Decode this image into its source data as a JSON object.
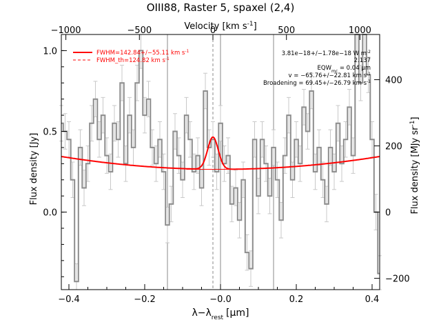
{
  "chart_data": {
    "type": "line",
    "title": "OIII88, Raster 5, spaxel (2,4)",
    "xlabel": "λ−λ",
    "xlabel_sub": "rest",
    "xlabel_unit": "[μm]",
    "ylabel": "Flux density [Jy]",
    "top_label": "Velocity [km s",
    "top_label_sup": "-1",
    "top_label_end": "]",
    "right_label": "Flux density [MJy sr",
    "right_label_sup": "-1",
    "right_label_end": "]",
    "xlim": [
      -0.42,
      0.42
    ],
    "ylim": [
      -0.48,
      1.1
    ],
    "xticks": [
      -0.4,
      -0.2,
      0.0,
      0.2,
      0.4
    ],
    "xtick_labels": [
      "−0.4",
      "−0.2",
      "−0.0",
      "0.2",
      "0.4"
    ],
    "yticks": [
      0.0,
      0.5,
      1.0
    ],
    "ytick_labels": [
      "0.0",
      "0.5",
      "1.0"
    ],
    "top_ticks": [
      -1000,
      -500,
      0,
      500,
      1000
    ],
    "top_tick_labels": [
      "−1000",
      "−500",
      "0",
      "500",
      "1000"
    ],
    "right_ticks": [
      -200,
      0,
      200,
      400
    ],
    "right_tick_labels": [
      "−200",
      "0",
      "200",
      "400"
    ],
    "vlines_solid": [
      -0.14,
      0.0,
      0.14
    ],
    "vline_dashed": -0.02,
    "legend": [
      {
        "label": "FWHM=142.84+/−55.11 km s",
        "sup": "-1",
        "style": "solid"
      },
      {
        "label": "FWHM_th=124.82 km s",
        "sup": "-1",
        "style": "dashed"
      }
    ],
    "annotations": [
      {
        "text": "3.81e−18+/−1.78e−18 W m",
        "sup": "-2"
      },
      {
        "text": "2.137"
      },
      {
        "text": "EQW",
        "sub": "mc",
        "text2": " = 0.04 μm"
      },
      {
        "text": "v = −65.76+/−22.81 km s",
        "sup": "-1"
      },
      {
        "text": "Broadening = 69.45+/−26.79 km s",
        "sup": "-1"
      }
    ],
    "fit": {
      "continuum_a": 0.265,
      "continuum_b": 0.45,
      "gauss_center": -0.02,
      "gauss_amp": 0.2,
      "gauss_sigma": 0.014
    },
    "series": [
      {
        "x": [
          -0.42,
          -0.41,
          -0.4,
          -0.39,
          -0.38,
          -0.37,
          -0.36,
          -0.35,
          -0.34,
          -0.33,
          -0.32,
          -0.31,
          -0.3,
          -0.29,
          -0.28,
          -0.27,
          -0.26,
          -0.25,
          -0.24,
          -0.23,
          -0.22,
          -0.21,
          -0.2,
          -0.19,
          -0.18,
          -0.17,
          -0.16,
          -0.15,
          -0.14,
          -0.13,
          -0.12,
          -0.11,
          -0.1,
          -0.09,
          -0.08,
          -0.07,
          -0.06,
          -0.05,
          -0.04,
          -0.03,
          -0.02,
          -0.01,
          0.0,
          0.01,
          0.02,
          0.03,
          0.04,
          0.05,
          0.06,
          0.07,
          0.08,
          0.09,
          0.1,
          0.11,
          0.12,
          0.13,
          0.14,
          0.15,
          0.16,
          0.17,
          0.18,
          0.19,
          0.2,
          0.21,
          0.22,
          0.23,
          0.24,
          0.25,
          0.26,
          0.27,
          0.28,
          0.29,
          0.3,
          0.31,
          0.32,
          0.33,
          0.34,
          0.35,
          0.36,
          0.37,
          0.38,
          0.39,
          0.4,
          0.41,
          0.42
        ],
        "y": [
          0.55,
          0.5,
          0.45,
          0.2,
          -0.43,
          0.4,
          0.15,
          0.3,
          0.55,
          0.7,
          0.45,
          0.6,
          0.35,
          0.25,
          0.55,
          0.45,
          0.8,
          0.3,
          0.6,
          0.4,
          0.8,
          1.0,
          0.6,
          0.7,
          0.4,
          0.3,
          0.45,
          0.25,
          -0.08,
          0.05,
          0.5,
          0.35,
          0.2,
          0.6,
          0.45,
          0.25,
          0.35,
          0.15,
          0.75,
          0.4,
          0.45,
          0.25,
          0.55,
          0.3,
          0.35,
          0.05,
          0.15,
          -0.05,
          0.2,
          -0.25,
          -0.35,
          0.45,
          0.1,
          0.45,
          0.3,
          0.1,
          0.4,
          0.2,
          -0.05,
          0.35,
          0.6,
          0.2,
          0.45,
          0.3,
          0.65,
          0.5,
          0.75,
          0.25,
          0.4,
          0.2,
          0.05,
          0.4,
          0.25,
          0.55,
          0.3,
          0.45,
          0.65,
          0.35,
          1.1,
          0.8,
          1.1,
          0.85,
          0.45,
          0.0,
          -0.38
        ],
        "yerr": 0.11
      }
    ]
  }
}
